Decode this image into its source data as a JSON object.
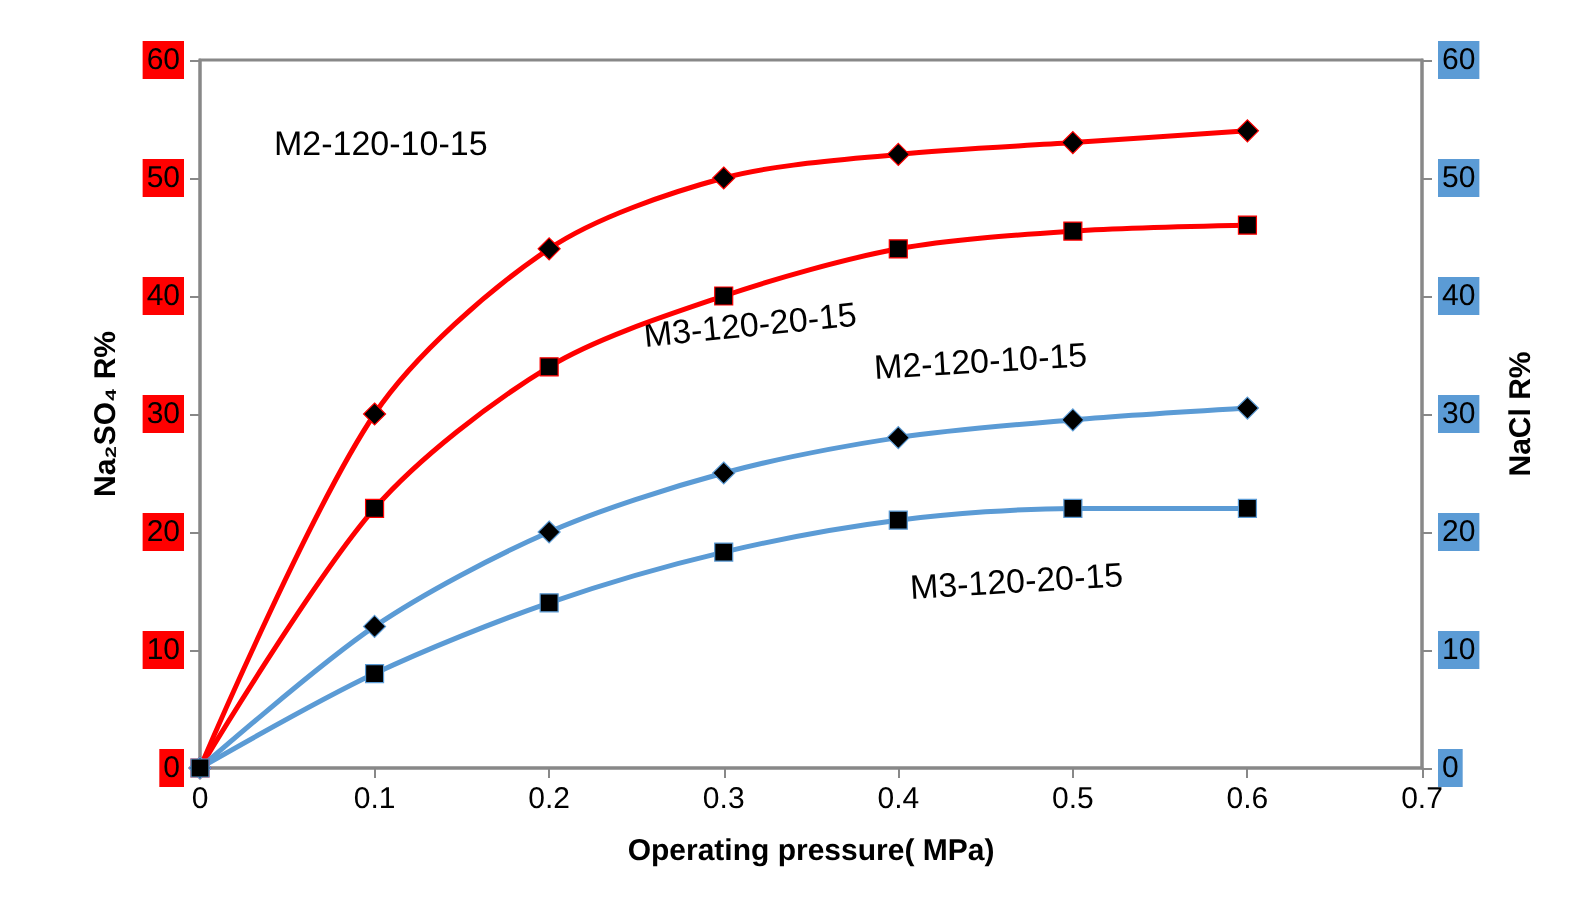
{
  "chart_data": {
    "type": "line",
    "xlabel": "Operating pressure( MPa)",
    "ylabel": "Na₂SO₄ R%",
    "y2label": "NaCl R%",
    "x": [
      0,
      0.1,
      0.2,
      0.3,
      0.4,
      0.5,
      0.6
    ],
    "series": [
      {
        "name": "M2-120-10-15",
        "color": "#ff0000",
        "marker": "diamond",
        "values": [
          0,
          30,
          44,
          50,
          52,
          53,
          54
        ]
      },
      {
        "name": "M3-120-20-15",
        "color": "#ff0000",
        "marker": "square",
        "values": [
          0,
          22,
          34,
          40,
          44,
          45.5,
          46
        ]
      },
      {
        "name": "M2-120-10-15",
        "color": "#5b9bd5",
        "marker": "diamond",
        "axis": "y2",
        "values": [
          0,
          12,
          20,
          25,
          28,
          29.5,
          30.5
        ]
      },
      {
        "name": "M3-120-20-15",
        "color": "#5b9bd5",
        "marker": "square",
        "axis": "y2",
        "values": [
          0,
          8,
          14,
          18.3,
          21,
          22,
          22
        ]
      }
    ],
    "xlim": [
      0,
      0.7
    ],
    "xticks": [
      0,
      0.1,
      0.2,
      0.3,
      0.4,
      0.5,
      0.6,
      0.7
    ],
    "ylim": [
      0,
      60
    ],
    "yticks": [
      0,
      10,
      20,
      30,
      40,
      50,
      60
    ],
    "y2lim": [
      0,
      60
    ],
    "y2ticks": [
      0,
      10,
      20,
      30,
      40,
      50,
      60
    ],
    "grid": false,
    "line_style": "solid"
  }
}
